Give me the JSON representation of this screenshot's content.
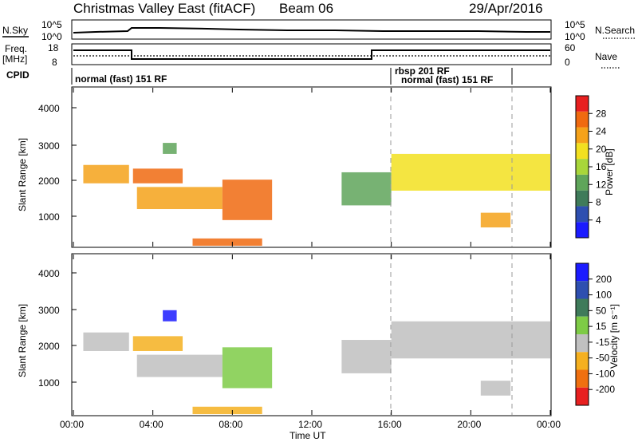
{
  "header": {
    "title": "Christmas Valley East (fitACF)",
    "beam": "Beam 06",
    "date": "29/Apr/2016"
  },
  "nsky_panel": {
    "left_label": "N.Sky",
    "right_label": "N.Search",
    "y_ticks_left": [
      "10^5",
      "10^0"
    ],
    "y_ticks_right": [
      "10^5",
      "10^0"
    ]
  },
  "freq_panel": {
    "left_label_1": "Freq.",
    "left_label_2": "[MHz]",
    "right_label": "Nave",
    "y_ticks_left": [
      "18",
      "8"
    ],
    "y_ticks_right": [
      "60",
      "0"
    ]
  },
  "cpid_panel": {
    "label": "CPID",
    "segments": [
      "normal (fast) 151 RF",
      "rbsp 201 RF",
      "normal (fast) 151 RF"
    ]
  },
  "x_axis": {
    "label": "Time UT",
    "ticks": [
      "00:00",
      "04:00",
      "08:00",
      "12:00",
      "16:00",
      "20:00",
      "00:00"
    ]
  },
  "power_panel": {
    "ylabel": "Slant Range [km]",
    "y_ticks": [
      "1000",
      "2000",
      "3000",
      "4000"
    ],
    "colorbar_label": "Power [dB]",
    "colorbar_ticks": [
      "4",
      "8",
      "12",
      "16",
      "20",
      "24",
      "28"
    ],
    "colors": [
      "#1b1bff",
      "#2e4fb0",
      "#3f7b5a",
      "#5fa55a",
      "#a8d63a",
      "#f2e020",
      "#f5a21a",
      "#f06a10",
      "#e82020"
    ]
  },
  "velocity_panel": {
    "ylabel": "Slant Range [km]",
    "y_ticks": [
      "1000",
      "2000",
      "3000",
      "4000"
    ],
    "colorbar_label": "Velocity [m s⁻¹]",
    "colorbar_ticks": [
      "200",
      "100",
      "50",
      "15",
      "-15",
      "-50",
      "-100",
      "-200"
    ],
    "colors": [
      "#1b1bff",
      "#2e4fb0",
      "#3f7b5a",
      "#7ecb46",
      "#c0c0c0",
      "#f5b020",
      "#f07010",
      "#e82020"
    ]
  },
  "chart_data": {
    "type": "heatmap",
    "title": "Christmas Valley East (fitACF)",
    "x": [
      "00:00",
      "04:00",
      "08:00",
      "12:00",
      "16:00",
      "20:00",
      "00:00"
    ],
    "xlabel": "Time UT",
    "ylabel": "Slant Range [km]",
    "ylim": [
      180,
      4500
    ],
    "regions": [
      {
        "name": "band-a",
        "t": [
          0.5,
          2.8
        ],
        "range": [
          1900,
          2400
        ],
        "power": 22,
        "velocity": -15
      },
      {
        "name": "band-b",
        "t": [
          3.0,
          5.5
        ],
        "range": [
          1900,
          2300
        ],
        "power": 26,
        "velocity": -40
      },
      {
        "name": "band-c",
        "t": [
          3.2,
          7.5
        ],
        "range": [
          1200,
          1800
        ],
        "power": 24,
        "velocity": -15
      },
      {
        "name": "band-d",
        "t": [
          7.5,
          10.0
        ],
        "range": [
          900,
          2000
        ],
        "power": 26,
        "velocity": 30
      },
      {
        "name": "band-e",
        "t": [
          6.0,
          9.5
        ],
        "range": [
          200,
          400
        ],
        "power": 28,
        "velocity": -50
      },
      {
        "name": "band-f",
        "t": [
          13.5,
          16.0
        ],
        "range": [
          1300,
          2200
        ],
        "power": 12,
        "velocity": -15
      },
      {
        "name": "band-g",
        "t": [
          16.0,
          24.0
        ],
        "range": [
          1700,
          2700
        ],
        "power": 18,
        "velocity": -15
      },
      {
        "name": "band-h",
        "t": [
          20.5,
          22.0
        ],
        "range": [
          700,
          1100
        ],
        "power": 22,
        "velocity": -15
      },
      {
        "name": "band-i",
        "t": [
          4.5,
          5.2
        ],
        "range": [
          2700,
          3000
        ],
        "power": 14,
        "velocity": 200
      }
    ]
  }
}
